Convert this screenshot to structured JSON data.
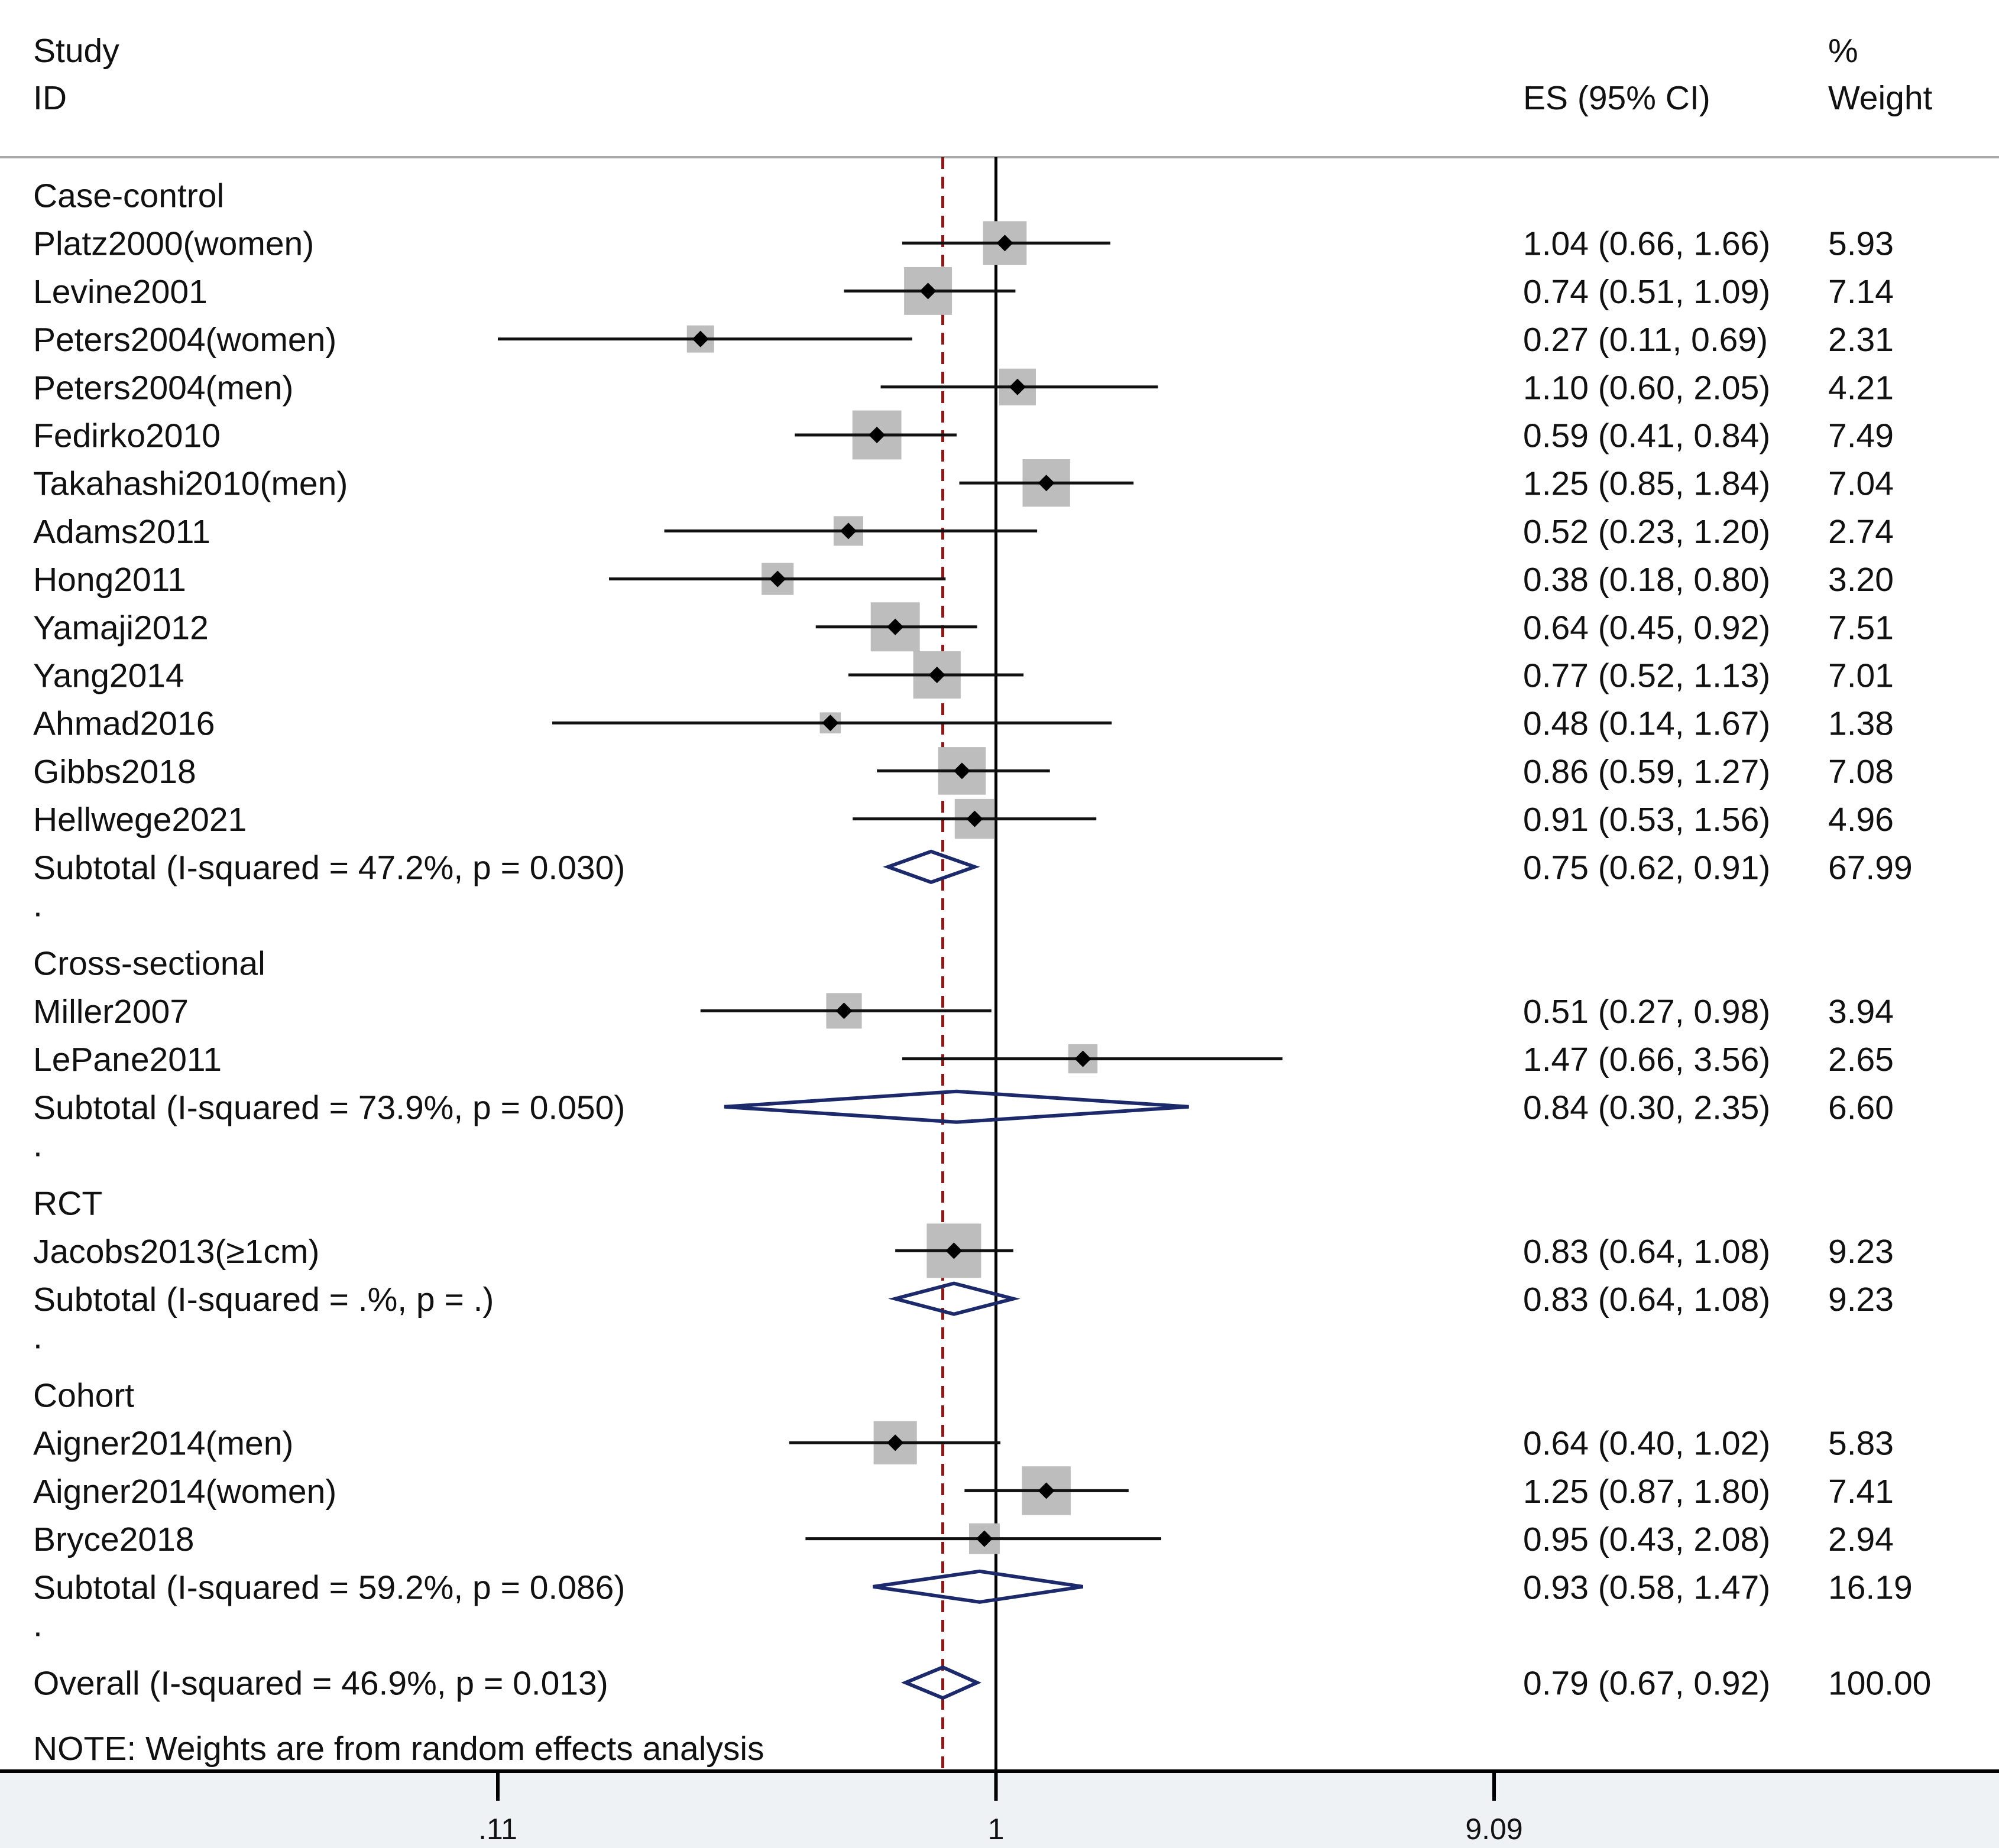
{
  "chart_data": {
    "type": "forest",
    "scale": "log",
    "xlim": [
      0.11,
      9.09
    ],
    "null_value": 1,
    "overall_reference": 0.79,
    "headers": {
      "study_line1": "Study",
      "study_line2": "ID",
      "es": "ES (95% CI)",
      "weight_line1": "%",
      "weight_line2": "Weight"
    },
    "x_ticks": [
      {
        "value": 0.11,
        "label": ".11"
      },
      {
        "value": 1,
        "label": "1"
      },
      {
        "value": 9.09,
        "label": "9.09"
      }
    ],
    "rows": [
      {
        "kind": "group",
        "label": "Case-control"
      },
      {
        "kind": "study",
        "label": "Platz2000(women)",
        "es": 1.04,
        "lo": 0.66,
        "hi": 1.66,
        "weight": 5.93,
        "es_text": "1.04 (0.66, 1.66)",
        "weight_text": "5.93"
      },
      {
        "kind": "study",
        "label": "Levine2001",
        "es": 0.74,
        "lo": 0.51,
        "hi": 1.09,
        "weight": 7.14,
        "es_text": "0.74 (0.51, 1.09)",
        "weight_text": "7.14"
      },
      {
        "kind": "study",
        "label": "Peters2004(women)",
        "es": 0.27,
        "lo": 0.11,
        "hi": 0.69,
        "weight": 2.31,
        "es_text": "0.27 (0.11, 0.69)",
        "weight_text": "2.31"
      },
      {
        "kind": "study",
        "label": "Peters2004(men)",
        "es": 1.1,
        "lo": 0.6,
        "hi": 2.05,
        "weight": 4.21,
        "es_text": "1.10 (0.60, 2.05)",
        "weight_text": "4.21"
      },
      {
        "kind": "study",
        "label": "Fedirko2010",
        "es": 0.59,
        "lo": 0.41,
        "hi": 0.84,
        "weight": 7.49,
        "es_text": "0.59 (0.41, 0.84)",
        "weight_text": "7.49"
      },
      {
        "kind": "study",
        "label": "Takahashi2010(men)",
        "es": 1.25,
        "lo": 0.85,
        "hi": 1.84,
        "weight": 7.04,
        "es_text": "1.25 (0.85, 1.84)",
        "weight_text": "7.04"
      },
      {
        "kind": "study",
        "label": "Adams2011",
        "es": 0.52,
        "lo": 0.23,
        "hi": 1.2,
        "weight": 2.74,
        "es_text": "0.52 (0.23, 1.20)",
        "weight_text": "2.74"
      },
      {
        "kind": "study",
        "label": "Hong2011",
        "es": 0.38,
        "lo": 0.18,
        "hi": 0.8,
        "weight": 3.2,
        "es_text": "0.38 (0.18, 0.80)",
        "weight_text": "3.20"
      },
      {
        "kind": "study",
        "label": "Yamaji2012",
        "es": 0.64,
        "lo": 0.45,
        "hi": 0.92,
        "weight": 7.51,
        "es_text": "0.64 (0.45, 0.92)",
        "weight_text": "7.51"
      },
      {
        "kind": "study",
        "label": "Yang2014",
        "es": 0.77,
        "lo": 0.52,
        "hi": 1.13,
        "weight": 7.01,
        "es_text": "0.77 (0.52, 1.13)",
        "weight_text": "7.01"
      },
      {
        "kind": "study",
        "label": "Ahmad2016",
        "es": 0.48,
        "lo": 0.14,
        "hi": 1.67,
        "weight": 1.38,
        "es_text": "0.48 (0.14, 1.67)",
        "weight_text": "1.38"
      },
      {
        "kind": "study",
        "label": "Gibbs2018",
        "es": 0.86,
        "lo": 0.59,
        "hi": 1.27,
        "weight": 7.08,
        "es_text": "0.86 (0.59, 1.27)",
        "weight_text": "7.08"
      },
      {
        "kind": "study",
        "label": "Hellwege2021",
        "es": 0.91,
        "lo": 0.53,
        "hi": 1.56,
        "weight": 4.96,
        "es_text": "0.91 (0.53, 1.56)",
        "weight_text": "4.96"
      },
      {
        "kind": "subtotal",
        "label": "Subtotal  (I-squared = 47.2%, p = 0.030)",
        "es": 0.75,
        "lo": 0.62,
        "hi": 0.91,
        "weight": 67.99,
        "es_text": "0.75 (0.62, 0.91)",
        "weight_text": "67.99"
      },
      {
        "kind": "spacer",
        "label": "."
      },
      {
        "kind": "group",
        "label": "Cross-sectional"
      },
      {
        "kind": "study",
        "label": "Miller2007",
        "es": 0.51,
        "lo": 0.27,
        "hi": 0.98,
        "weight": 3.94,
        "es_text": "0.51 (0.27, 0.98)",
        "weight_text": "3.94"
      },
      {
        "kind": "study",
        "label": "LePane2011",
        "es": 1.47,
        "lo": 0.66,
        "hi": 3.56,
        "weight": 2.65,
        "es_text": "1.47 (0.66, 3.56)",
        "weight_text": "2.65"
      },
      {
        "kind": "subtotal",
        "label": "Subtotal  (I-squared = 73.9%, p = 0.050)",
        "es": 0.84,
        "lo": 0.3,
        "hi": 2.35,
        "weight": 6.6,
        "es_text": "0.84 (0.30, 2.35)",
        "weight_text": "6.60"
      },
      {
        "kind": "spacer",
        "label": "."
      },
      {
        "kind": "group",
        "label": "RCT"
      },
      {
        "kind": "study",
        "label": "Jacobs2013(≥1cm)",
        "es": 0.83,
        "lo": 0.64,
        "hi": 1.08,
        "weight": 9.23,
        "es_text": "0.83 (0.64, 1.08)",
        "weight_text": "9.23"
      },
      {
        "kind": "subtotal",
        "label": "Subtotal  (I-squared = .%, p = .)",
        "es": 0.83,
        "lo": 0.64,
        "hi": 1.08,
        "weight": 9.23,
        "es_text": "0.83 (0.64, 1.08)",
        "weight_text": "9.23"
      },
      {
        "kind": "spacer",
        "label": "."
      },
      {
        "kind": "group",
        "label": "Cohort"
      },
      {
        "kind": "study",
        "label": "Aigner2014(men)",
        "es": 0.64,
        "lo": 0.4,
        "hi": 1.02,
        "weight": 5.83,
        "es_text": "0.64 (0.40, 1.02)",
        "weight_text": "5.83"
      },
      {
        "kind": "study",
        "label": "Aigner2014(women)",
        "es": 1.25,
        "lo": 0.87,
        "hi": 1.8,
        "weight": 7.41,
        "es_text": "1.25 (0.87, 1.80)",
        "weight_text": "7.41"
      },
      {
        "kind": "study",
        "label": "Bryce2018",
        "es": 0.95,
        "lo": 0.43,
        "hi": 2.08,
        "weight": 2.94,
        "es_text": "0.95 (0.43, 2.08)",
        "weight_text": "2.94"
      },
      {
        "kind": "subtotal",
        "label": "Subtotal  (I-squared = 59.2%, p = 0.086)",
        "es": 0.93,
        "lo": 0.58,
        "hi": 1.47,
        "weight": 16.19,
        "es_text": "0.93 (0.58, 1.47)",
        "weight_text": "16.19"
      },
      {
        "kind": "spacer",
        "label": "."
      },
      {
        "kind": "overall",
        "label": "Overall  (I-squared = 46.9%, p = 0.013)",
        "es": 0.79,
        "lo": 0.67,
        "hi": 0.92,
        "weight": 100.0,
        "es_text": "0.79 (0.67, 0.92)",
        "weight_text": "100.00"
      }
    ],
    "note": "NOTE: Weights are from random effects analysis",
    "colors": {
      "text": "#111111",
      "ci_line": "#111111",
      "box": "#bdbdbd",
      "point": "#000000",
      "diamond": "#1c2a6b",
      "reference_line": "#8b1a1a",
      "null_line": "#000000",
      "axis_band": "#eef2f4",
      "header_rule": "#aaaaaa"
    }
  }
}
